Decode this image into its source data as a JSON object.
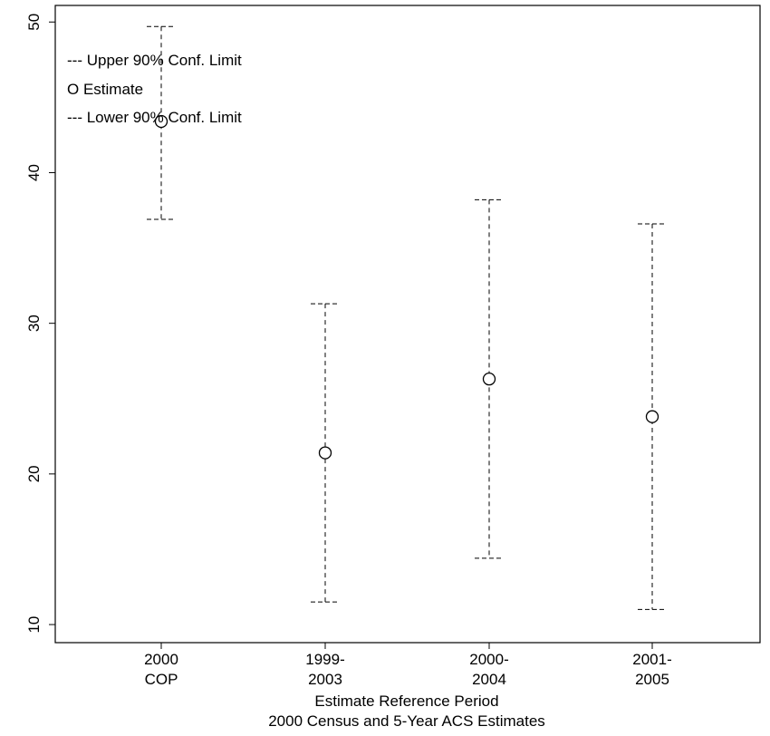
{
  "chart_data": {
    "type": "errorbar",
    "title": "",
    "xlabel": [
      "Estimate Reference Period",
      "2000 Census and 5-Year ACS Estimates"
    ],
    "ylabel": "",
    "ylim": [
      10,
      50
    ],
    "yticks": [
      10,
      20,
      30,
      40,
      50
    ],
    "categories": [
      [
        "2000",
        "COP"
      ],
      [
        "1999-",
        "2003"
      ],
      [
        "2000-",
        "2004"
      ],
      [
        "2001-",
        "2005"
      ]
    ],
    "series": [
      {
        "name": "Upper 90% Conf. Limit",
        "values": [
          49.7,
          31.3,
          38.2,
          36.6
        ]
      },
      {
        "name": "Estimate",
        "values": [
          43.4,
          21.4,
          26.3,
          23.8
        ]
      },
      {
        "name": "Lower 90% Conf. Limit",
        "values": [
          36.9,
          11.5,
          14.4,
          11.0
        ]
      }
    ],
    "legend": {
      "placement": "top-left",
      "entries": [
        {
          "symbol": "---",
          "label": "Upper 90% Conf. Limit"
        },
        {
          "symbol": "O",
          "label": "Estimate"
        },
        {
          "symbol": "---",
          "label": "Lower 90% Conf. Limit"
        }
      ]
    },
    "grid": false
  }
}
